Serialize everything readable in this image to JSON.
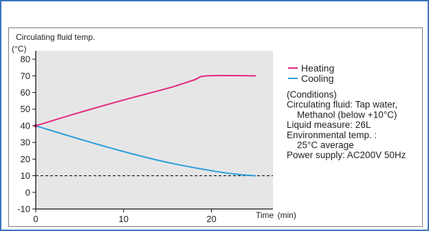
{
  "frame": {
    "border_color": "#3b73b9"
  },
  "chart_data": {
    "type": "line",
    "title": "Circulating fluid temp.",
    "ylabel": "(°C)",
    "xlabel_text": "Time",
    "xlabel_unit": "(min)",
    "xlim": [
      0,
      27
    ],
    "ylim": [
      -10,
      85
    ],
    "x_ticks": [
      0,
      10,
      20
    ],
    "y_ticks": [
      -10,
      0,
      10,
      20,
      30,
      40,
      50,
      60,
      70,
      80
    ],
    "reference_line": {
      "y": 10,
      "style": "dashed",
      "color": "#111111"
    },
    "series": [
      {
        "name": "Heating",
        "color": "#e2277a",
        "x": [
          0,
          5,
          10,
          15,
          18,
          19.5,
          25
        ],
        "y": [
          40,
          48,
          55.5,
          62.5,
          67.5,
          70,
          70
        ]
      },
      {
        "name": "Cooling",
        "color": "#2a9fdc",
        "x": [
          0,
          5,
          10,
          15,
          20,
          23,
          25
        ],
        "y": [
          40,
          32,
          24.5,
          18,
          13,
          10.8,
          10
        ]
      }
    ],
    "legend": {
      "placement": "right",
      "items": [
        {
          "label": "Heating",
          "color": "#e2277a"
        },
        {
          "label": "Cooling",
          "color": "#2a9fdc"
        }
      ]
    },
    "conditions": [
      "(Conditions)",
      "Circulating fluid: Tap water,",
      "  Methanol (below +10°C)",
      "Liquid measure: 26L",
      "Environmental temp. :",
      "  25°C average",
      "Power supply: AC200V 50Hz"
    ],
    "plot_area_color": "#e6e6e6"
  }
}
